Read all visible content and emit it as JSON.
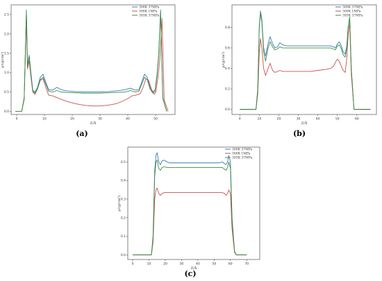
{
  "chart_data": [
    {
      "type": "line",
      "panel_label": "(a)",
      "xlabel": "Z/Å",
      "ylabel": "ρ/(g/cm³)",
      "xlim": [
        -2,
        57
      ],
      "ylim": [
        -0.08,
        2.75
      ],
      "xticks": [
        0,
        10,
        20,
        30,
        40,
        50
      ],
      "yticks": [
        0.0,
        0.5,
        1.0,
        1.5,
        2.0,
        2.5
      ],
      "ytick_labels": [
        "0.0",
        "0.5",
        "1.0",
        "1.5",
        "2.0",
        "2.5"
      ],
      "legend_position": "top-right",
      "series": [
        {
          "name": "300K 37MPa",
          "color": "#3b78b7",
          "x": [
            -0.5,
            1.8,
            2.7,
            3.5,
            3.9,
            4.5,
            5.2,
            5.8,
            6.6,
            7.5,
            8.5,
            9.5,
            10.5,
            11.5,
            13,
            14.5,
            16,
            18,
            21,
            24,
            27,
            30,
            33,
            36,
            39,
            41,
            42.5,
            44,
            45,
            46,
            47,
            48,
            49,
            49.8,
            50.5,
            51.1,
            51.8,
            52.6,
            54
          ],
          "y": [
            0.0,
            0.0,
            0.35,
            2.62,
            1.2,
            1.45,
            0.95,
            0.55,
            0.5,
            0.62,
            0.88,
            0.96,
            0.75,
            0.56,
            0.55,
            0.62,
            0.56,
            0.53,
            0.51,
            0.5,
            0.5,
            0.5,
            0.51,
            0.53,
            0.56,
            0.6,
            0.55,
            0.56,
            0.75,
            0.96,
            0.88,
            0.62,
            0.5,
            0.55,
            0.95,
            1.45,
            2.62,
            0.35,
            0.0
          ]
        },
        {
          "name": "300K 1MPa",
          "color": "#c8504b",
          "x": [
            -0.5,
            1.8,
            2.7,
            3.5,
            3.9,
            4.5,
            5.2,
            5.8,
            6.6,
            7.5,
            8.5,
            9.5,
            10.5,
            11.5,
            13,
            15,
            18,
            21,
            24,
            27,
            30,
            33,
            36,
            38,
            40,
            41.5,
            43,
            44.5,
            45.5,
            46.5,
            47.5,
            48.5,
            49.5,
            50.1,
            50.8,
            51.5,
            52.3,
            53.1,
            54.5
          ],
          "y": [
            0.0,
            0.0,
            0.3,
            2.4,
            1.1,
            1.3,
            0.85,
            0.5,
            0.44,
            0.58,
            0.8,
            0.84,
            0.62,
            0.42,
            0.4,
            0.34,
            0.26,
            0.2,
            0.16,
            0.14,
            0.14,
            0.16,
            0.2,
            0.26,
            0.33,
            0.4,
            0.42,
            0.46,
            0.62,
            0.84,
            0.8,
            0.58,
            0.44,
            0.5,
            0.85,
            1.3,
            2.4,
            0.3,
            0.0
          ]
        },
        {
          "name": "393K 37MPa",
          "color": "#3c8d3f",
          "x": [
            -0.5,
            1.8,
            2.7,
            3.5,
            3.9,
            4.5,
            5.2,
            5.8,
            6.6,
            7.5,
            8.5,
            9.5,
            10.5,
            11.5,
            13,
            14.5,
            16,
            18,
            21,
            24,
            27,
            30,
            33,
            36,
            39,
            41,
            42.5,
            44,
            45,
            46,
            47,
            48,
            49,
            49.8,
            50.5,
            51.1,
            51.8,
            52.6,
            54
          ],
          "y": [
            0.0,
            0.0,
            0.33,
            2.55,
            1.15,
            1.4,
            0.9,
            0.52,
            0.47,
            0.58,
            0.82,
            0.88,
            0.7,
            0.52,
            0.5,
            0.54,
            0.5,
            0.49,
            0.48,
            0.47,
            0.47,
            0.47,
            0.48,
            0.49,
            0.5,
            0.54,
            0.5,
            0.52,
            0.7,
            0.88,
            0.82,
            0.58,
            0.47,
            0.52,
            0.9,
            1.4,
            2.55,
            0.33,
            0.0
          ]
        }
      ]
    },
    {
      "type": "line",
      "panel_label": "(b)",
      "xlabel": "Z/Å",
      "ylabel": "ρ/(g/cm³)",
      "xlim": [
        -4,
        70
      ],
      "ylim": [
        -0.05,
        1.02
      ],
      "xticks": [
        0,
        10,
        20,
        30,
        40,
        50,
        60
      ],
      "yticks": [
        0.0,
        0.2,
        0.4,
        0.6,
        0.8
      ],
      "ytick_labels": [
        "0.0",
        "0.2",
        "0.4",
        "0.6",
        "0.8"
      ],
      "legend_position": "top-right",
      "series": [
        {
          "name": "300K 37MPa",
          "color": "#3b78b7",
          "x": [
            0,
            8.3,
            9.2,
            10,
            10.6,
            11.3,
            12.2,
            13.2,
            14.5,
            15.5,
            16.8,
            18,
            19.3,
            20.5,
            22,
            24,
            28,
            32,
            36,
            40,
            44,
            46.5,
            48,
            49,
            50,
            51,
            52,
            53,
            54,
            54.8,
            55.5,
            56.3,
            57.1,
            58.5,
            67
          ],
          "y": [
            0.0,
            0.0,
            0.2,
            0.82,
            0.96,
            0.88,
            0.6,
            0.52,
            0.64,
            0.71,
            0.64,
            0.6,
            0.61,
            0.65,
            0.63,
            0.62,
            0.62,
            0.62,
            0.62,
            0.62,
            0.62,
            0.62,
            0.61,
            0.6,
            0.64,
            0.66,
            0.62,
            0.56,
            0.54,
            0.62,
            0.8,
            0.9,
            0.4,
            0.0,
            0.0
          ]
        },
        {
          "name": "300K 1MPa",
          "color": "#c8504b",
          "x": [
            0,
            8.3,
            9.2,
            10,
            10.6,
            11.3,
            12.2,
            13.2,
            14.5,
            15.5,
            16.8,
            18,
            19.3,
            20.5,
            22,
            24,
            28,
            32,
            36,
            40,
            44,
            46.5,
            48,
            49,
            50,
            51,
            52,
            53,
            54,
            54.8,
            55.5,
            56.3,
            57.1,
            58.5,
            67
          ],
          "y": [
            0.0,
            0.0,
            0.15,
            0.56,
            0.69,
            0.6,
            0.4,
            0.33,
            0.4,
            0.45,
            0.38,
            0.36,
            0.37,
            0.38,
            0.37,
            0.37,
            0.37,
            0.37,
            0.37,
            0.38,
            0.39,
            0.4,
            0.42,
            0.46,
            0.49,
            0.47,
            0.42,
            0.38,
            0.36,
            0.5,
            0.72,
            0.84,
            0.35,
            0.0,
            0.0
          ]
        },
        {
          "name": "393K 37MPa",
          "color": "#3c8d3f",
          "x": [
            0,
            8.3,
            9.2,
            10,
            10.6,
            11.3,
            12.2,
            13.2,
            14.5,
            15.5,
            16.8,
            18,
            19.3,
            20.5,
            22,
            24,
            28,
            32,
            36,
            40,
            44,
            46.5,
            48,
            49,
            50,
            51,
            52,
            53,
            54,
            54.8,
            55.5,
            56.3,
            57.1,
            58.5,
            67
          ],
          "y": [
            0.0,
            0.0,
            0.19,
            0.8,
            0.94,
            0.85,
            0.56,
            0.47,
            0.6,
            0.66,
            0.61,
            0.58,
            0.59,
            0.61,
            0.6,
            0.6,
            0.6,
            0.6,
            0.6,
            0.6,
            0.6,
            0.6,
            0.59,
            0.58,
            0.62,
            0.63,
            0.59,
            0.53,
            0.51,
            0.6,
            0.8,
            0.9,
            0.4,
            0.0,
            0.0
          ]
        }
      ]
    },
    {
      "type": "line",
      "panel_label": "(c)",
      "xlabel": "Z/Å",
      "ylabel": "ρ/(g/cm³)",
      "xlim": [
        -3,
        78
      ],
      "ylim": [
        -0.025,
        0.58
      ],
      "xticks": [
        0,
        10,
        20,
        30,
        40,
        50,
        60,
        70
      ],
      "yticks": [
        0.0,
        0.1,
        0.2,
        0.3,
        0.4,
        0.5
      ],
      "ytick_labels": [
        "0.0",
        "0.1",
        "0.2",
        "0.3",
        "0.4",
        "0.5"
      ],
      "legend_position": "top-right",
      "series": [
        {
          "name": "300K 37MPa",
          "color": "#3b78b7",
          "x": [
            0,
            11.5,
            12.5,
            13.5,
            14.3,
            15,
            16,
            17,
            18,
            19.5,
            21,
            23,
            26,
            30,
            34,
            38,
            42,
            46,
            50,
            53,
            55,
            56.5,
            57.3,
            58.2,
            59,
            60,
            61,
            62.5,
            63.5,
            70
          ],
          "y": [
            0.0,
            0.0,
            0.1,
            0.45,
            0.535,
            0.55,
            0.5,
            0.485,
            0.505,
            0.51,
            0.5,
            0.495,
            0.495,
            0.495,
            0.495,
            0.495,
            0.495,
            0.495,
            0.495,
            0.495,
            0.5,
            0.49,
            0.485,
            0.5,
            0.535,
            0.5,
            0.2,
            0.02,
            0.0,
            0.0
          ]
        },
        {
          "name": "300K 1MPa",
          "color": "#c8504b",
          "x": [
            0,
            11.5,
            12.5,
            13.5,
            14.3,
            15,
            16,
            17,
            18,
            19.5,
            21,
            23,
            26,
            30,
            34,
            38,
            42,
            46,
            50,
            53,
            55,
            56.5,
            57.3,
            58.2,
            59,
            60,
            61,
            62.5,
            63.5,
            70
          ],
          "y": [
            0.0,
            0.0,
            0.07,
            0.3,
            0.35,
            0.36,
            0.33,
            0.32,
            0.33,
            0.335,
            0.335,
            0.335,
            0.335,
            0.335,
            0.335,
            0.335,
            0.335,
            0.335,
            0.335,
            0.335,
            0.335,
            0.33,
            0.32,
            0.33,
            0.35,
            0.33,
            0.14,
            0.015,
            0.0,
            0.0
          ]
        },
        {
          "name": "393K 37MPa",
          "color": "#3c8d3f",
          "x": [
            0,
            11.5,
            12.5,
            13.5,
            14.3,
            15,
            16,
            17,
            18,
            19.5,
            21,
            23,
            26,
            30,
            34,
            38,
            42,
            46,
            50,
            53,
            55,
            56.5,
            57.3,
            58.2,
            59,
            60,
            61,
            62.5,
            63.5,
            70
          ],
          "y": [
            0.0,
            0.0,
            0.09,
            0.42,
            0.5,
            0.51,
            0.465,
            0.455,
            0.47,
            0.475,
            0.47,
            0.47,
            0.47,
            0.47,
            0.47,
            0.47,
            0.47,
            0.47,
            0.47,
            0.47,
            0.47,
            0.46,
            0.455,
            0.47,
            0.5,
            0.465,
            0.18,
            0.02,
            0.0,
            0.0
          ]
        }
      ]
    }
  ]
}
